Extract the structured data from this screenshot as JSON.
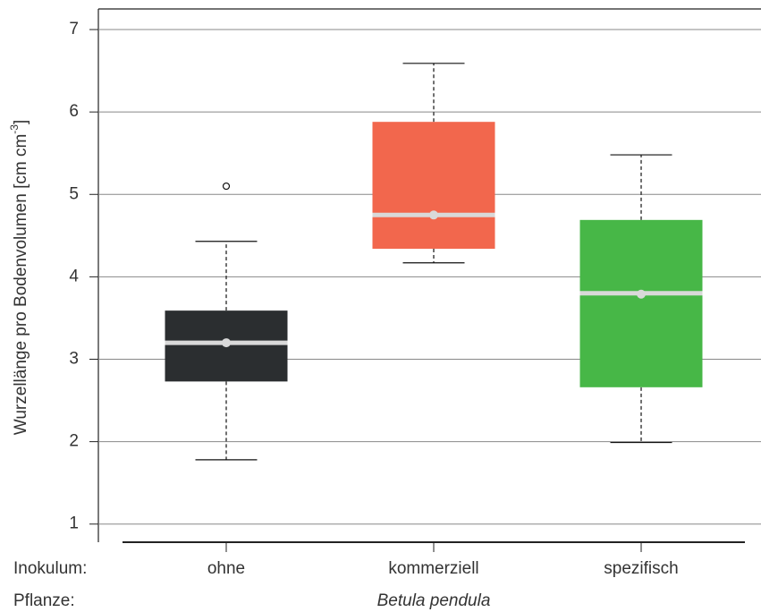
{
  "chart_data": {
    "type": "box",
    "ylabel": "Wurzellänge pro Bodenvolumen [cm cm",
    "ylabel_superscript": "-3",
    "ylabel_end": "]",
    "row_labels": [
      "Inokulum:",
      "Pflanze:"
    ],
    "group_label": "Betula pendula",
    "categories": [
      "ohne",
      "kommerziell",
      "spezifisch"
    ],
    "colors": [
      "#2b2e30",
      "#f2674d",
      "#47b747"
    ],
    "whisker_low": [
      1.78,
      4.17,
      1.99
    ],
    "q1": [
      2.73,
      4.34,
      2.66
    ],
    "median": [
      3.2,
      4.75,
      3.8
    ],
    "q3": [
      3.59,
      5.88,
      4.69
    ],
    "whisker_high": [
      4.43,
      6.59,
      5.48
    ],
    "means": [
      3.2,
      4.75,
      3.79
    ],
    "outliers": [
      [
        5.1
      ],
      [],
      []
    ],
    "median_color": "#d9d9d9",
    "ylim": [
      0.78,
      7.25
    ],
    "yticks": [
      1,
      2,
      3,
      4,
      5,
      6,
      7
    ],
    "grid": true
  }
}
